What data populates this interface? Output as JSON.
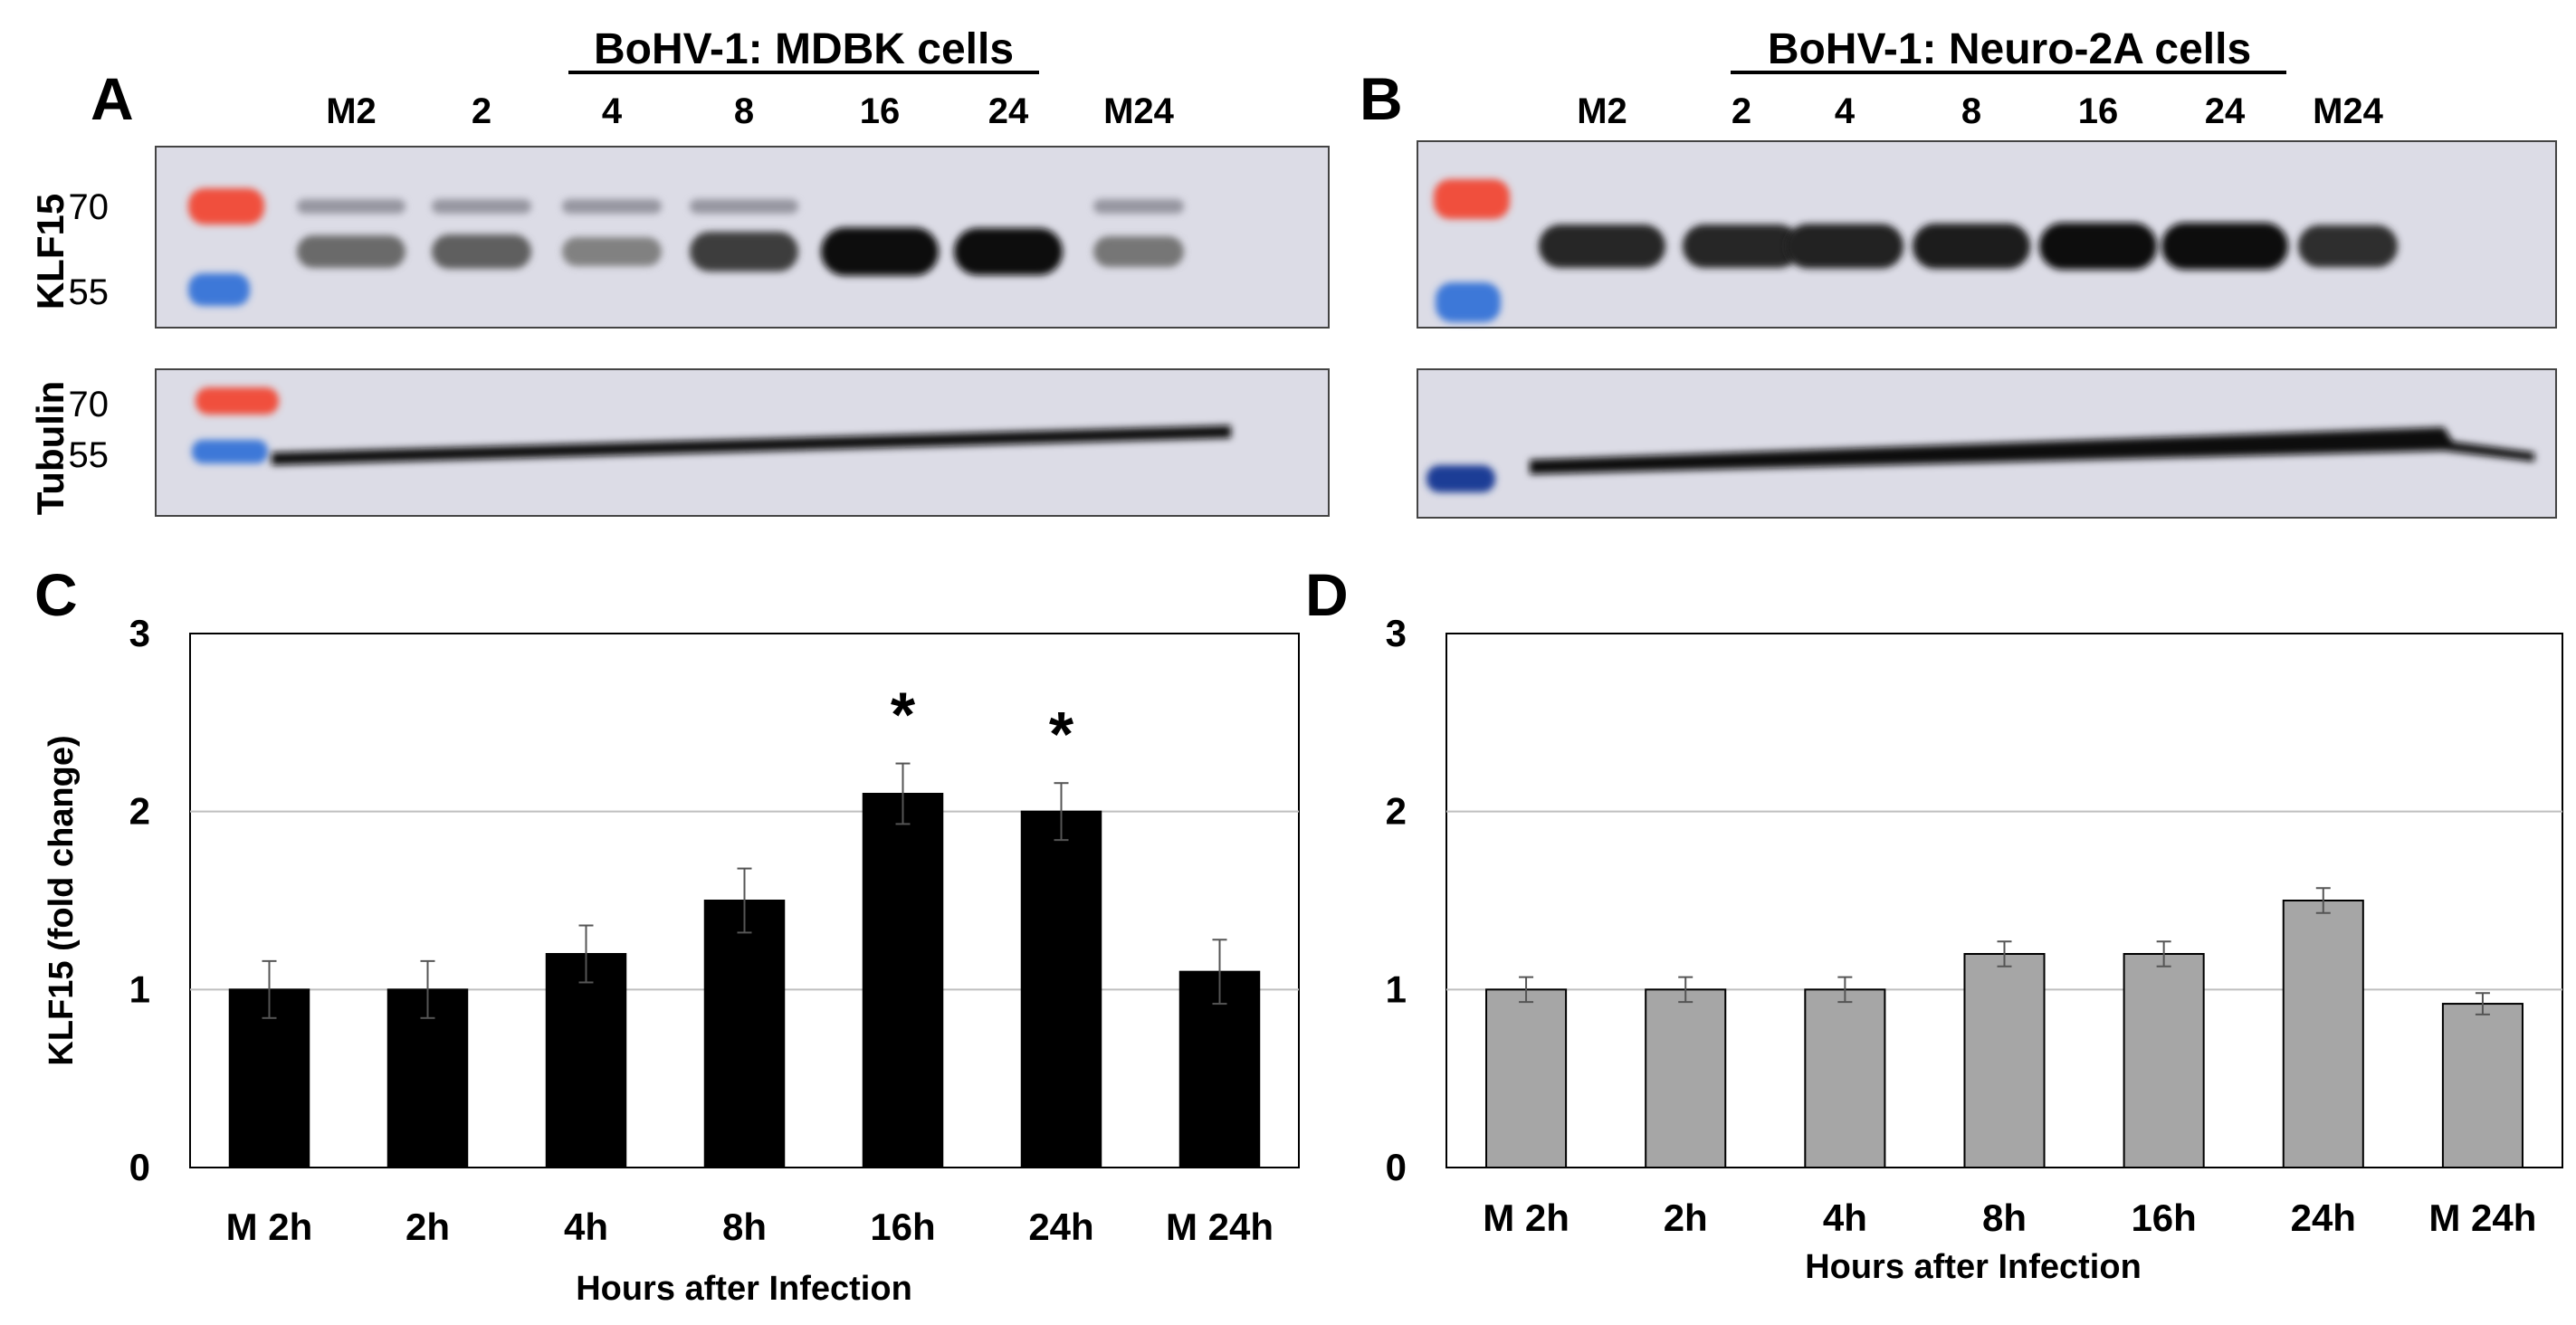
{
  "panels": {
    "A": "A",
    "B": "B",
    "C": "C",
    "D": "D"
  },
  "blots": [
    {
      "title": "BoHV-1: MDBK cells",
      "lanes": [
        "M2",
        "2",
        "4",
        "8",
        "16",
        "24",
        "M24"
      ],
      "klf15_label": "KLF15",
      "tubulin_label": "Tubulin",
      "klf15_markers": [
        "70",
        "55"
      ],
      "tubulin_markers": [
        "70",
        "55"
      ],
      "band_intensity_klf15": [
        0.55,
        0.6,
        0.45,
        0.75,
        0.98,
        0.95,
        0.5
      ],
      "band_intensity_tubulin": [
        0.9,
        0.9,
        0.9,
        0.9,
        0.9,
        0.9,
        0.9
      ]
    },
    {
      "title": "BoHV-1: Neuro-2A cells",
      "lanes": [
        "M2",
        "2",
        "4",
        "8",
        "16",
        "24",
        "M24"
      ],
      "band_intensity_klf15": [
        0.85,
        0.85,
        0.88,
        0.9,
        0.95,
        0.95,
        0.82
      ],
      "band_intensity_tubulin": [
        0.9,
        0.9,
        0.9,
        0.9,
        0.9,
        0.9,
        0.9
      ]
    }
  ],
  "colors": {
    "membrane": "#dcdce6",
    "ladder_red": "#f0503c",
    "ladder_blue": "#3c78d8",
    "bar_mdbk": "#000000",
    "bar_neuro": "#a6a6a6"
  },
  "chart_data": [
    {
      "type": "bar",
      "categories": [
        "M 2h",
        "2h",
        "4h",
        "8h",
        "16h",
        "24h",
        "M 24h"
      ],
      "values": [
        1.0,
        1.0,
        1.2,
        1.5,
        2.1,
        2.0,
        1.1
      ],
      "errors": [
        0.16,
        0.16,
        0.16,
        0.18,
        0.17,
        0.16,
        0.18
      ],
      "significance": [
        "",
        "",
        "",
        "",
        "*",
        "*",
        ""
      ],
      "ylabel": "KLF15 (fold change)",
      "xlabel": "Hours after Infection",
      "ylim": [
        0,
        3
      ],
      "yticks": [
        "0",
        "1",
        "2",
        "3"
      ],
      "grid": true
    },
    {
      "type": "bar",
      "categories": [
        "M 2h",
        "2h",
        "4h",
        "8h",
        "16h",
        "24h",
        "M 24h"
      ],
      "values": [
        1.0,
        1.0,
        1.0,
        1.2,
        1.2,
        1.5,
        0.92
      ],
      "errors": [
        0.07,
        0.07,
        0.07,
        0.07,
        0.07,
        0.07,
        0.06
      ],
      "significance": [
        "",
        "",
        "",
        "",
        "",
        "",
        ""
      ],
      "ylabel": "",
      "xlabel": "Hours after Infection",
      "ylim": [
        0,
        3
      ],
      "yticks": [
        "0",
        "1",
        "2",
        "3"
      ],
      "grid": true
    }
  ]
}
